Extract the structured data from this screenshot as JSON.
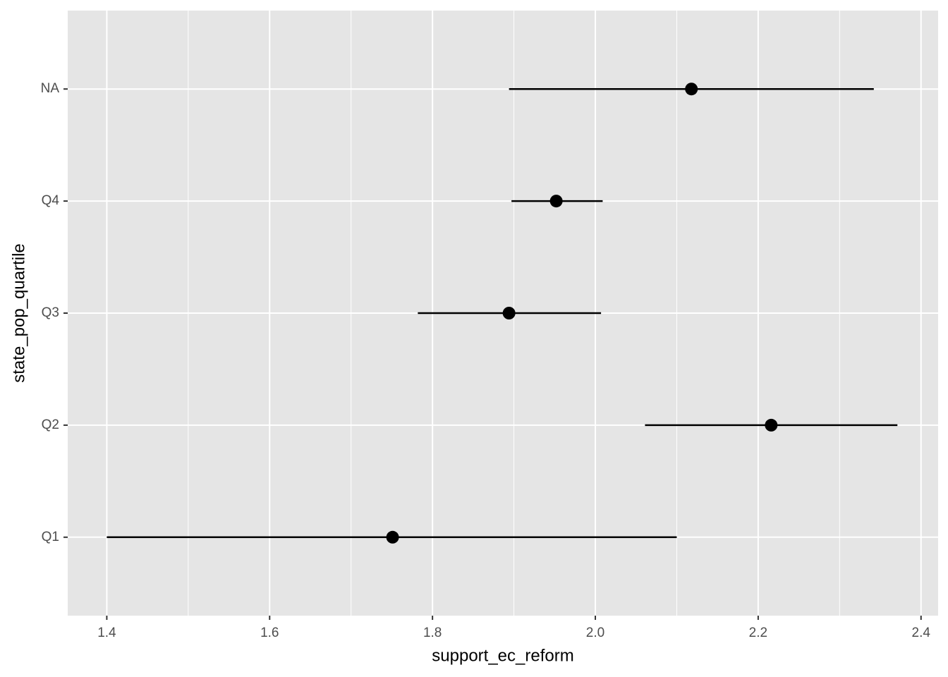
{
  "chart_data": {
    "type": "pointrange",
    "xlabel": "support_ec_reform",
    "ylabel": "state_pop_quartile",
    "categories": [
      "Q1",
      "Q2",
      "Q3",
      "Q4",
      "NA"
    ],
    "values": [
      1.751,
      2.216,
      1.894,
      1.952,
      2.118
    ],
    "lower": [
      1.4,
      2.061,
      1.782,
      1.897,
      1.894
    ],
    "upper": [
      2.1,
      2.371,
      2.007,
      2.009,
      2.342
    ],
    "color": "#000000",
    "xlim": [
      1.352,
      2.421
    ],
    "xticks": [
      1.4,
      1.6,
      1.8,
      {
        "value": 2,
        "label": "2.0"
      },
      2.2,
      2.4
    ],
    "grid": true
  }
}
